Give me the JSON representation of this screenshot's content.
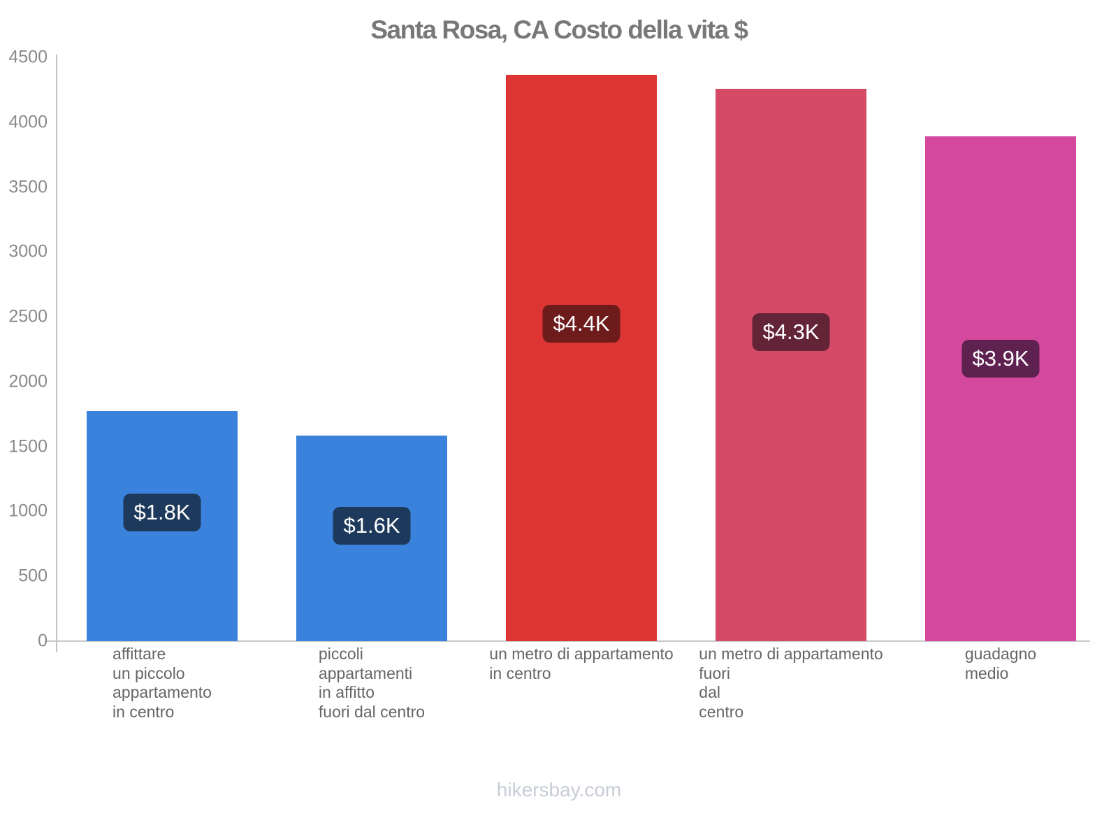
{
  "chart_data": {
    "type": "bar",
    "title": "Santa Rosa, CA Costo della vita $",
    "categories": [
      [
        "affittare",
        "un piccolo",
        "appartamento",
        "in centro"
      ],
      [
        "piccoli",
        "appartamenti",
        "in affitto",
        "fuori dal centro"
      ],
      [
        "un metro di appartamento",
        "in centro"
      ],
      [
        "un metro di appartamento",
        "fuori",
        "dal",
        "centro"
      ],
      [
        "guadagno",
        "medio"
      ]
    ],
    "values": [
      1775,
      1585,
      4365,
      4255,
      3890
    ],
    "value_labels": [
      "$1.8K",
      "$1.6K",
      "$4.4K",
      "$4.3K",
      "$3.9K"
    ],
    "bar_colors": [
      "#3B82DC",
      "#3B82DC",
      "#DC3534",
      "#D44A67",
      "#D4499E"
    ],
    "value_label_bg_colors": [
      "#1D3A5C",
      "#1D3A5C",
      "#6E1B1B",
      "#632438",
      "#5F2150"
    ],
    "value_label_text_color": "#FFFFFF",
    "xlabel": "",
    "ylabel": "",
    "ylim": [
      0,
      4500
    ],
    "yticks": [
      0,
      500,
      1000,
      1500,
      2000,
      2500,
      3000,
      3500,
      4000,
      4500
    ],
    "grid": false,
    "legend": false
  },
  "footer": {
    "watermark": "hikersbay.com"
  }
}
